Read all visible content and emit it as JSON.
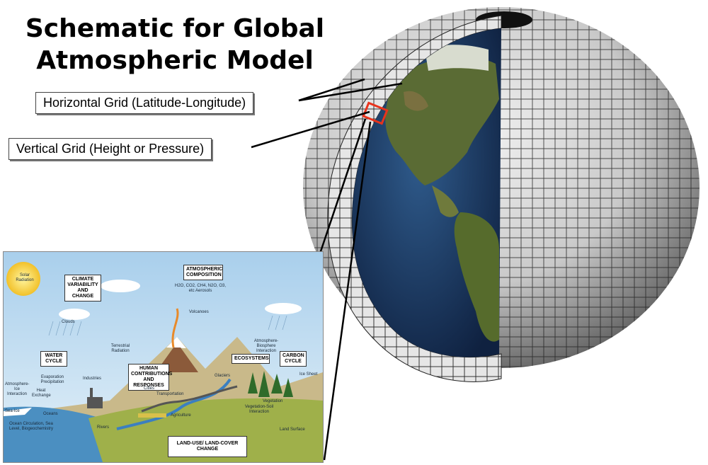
{
  "title_line1": "Schematic for Global",
  "title_line2": "Atmospheric Model",
  "labels": {
    "horizontal": "Horizontal Grid (Latitude-Longitude)",
    "vertical": "Vertical Grid (Height or Pressure)"
  },
  "colors": {
    "grid_cell": "#d9d9d9",
    "highlight": "#e8331c",
    "ocean": "#1f3d66",
    "sky": "#b8d7ee"
  },
  "inset": {
    "solar": "Solar Radiation",
    "climate_box": "CLIMATE VARIABILITY AND CHANGE",
    "atm_box": "ATMOSPHERIC COMPOSITION",
    "atm_species": "H2O, CO2, CH4, N2O, O3, etc Aerosols",
    "volcanoes": "Volcanoes",
    "clouds": "Clouds",
    "terrestrial": "Terrestrial Radiation",
    "water_box": "WATER CYCLE",
    "human_box": "HUMAN CONTRIBUTIONS AND RESPONSES",
    "ecosystems_box": "ECOSYSTEMS",
    "carbon_box": "CARBON CYCLE",
    "atm_bio": "Atmosphere-Biosphere Interaction",
    "ice_sheet": "Ice Sheet",
    "glaciers": "Glaciers",
    "atm_ice": "Atmosphere-Ice Interaction",
    "evap": "Evaporation Precipitation",
    "industries": "Industries",
    "heat_exch": "Heat Exchange",
    "cities": "Cities",
    "transportation": "Transportation",
    "vegetation": "Vegetation",
    "sea_ice": "Sea-Ice",
    "oceans": "Oceans",
    "agriculture": "Agriculture",
    "veg_soil": "Vegetation-Soil Interaction",
    "ocean_circ": "Ocean Circulation, Sea Level, Biogeochemistry",
    "rivers": "Rivers",
    "land_surface": "Land Surface",
    "land_use_box": "LAND-USE/ LAND-COVER CHANGE"
  }
}
